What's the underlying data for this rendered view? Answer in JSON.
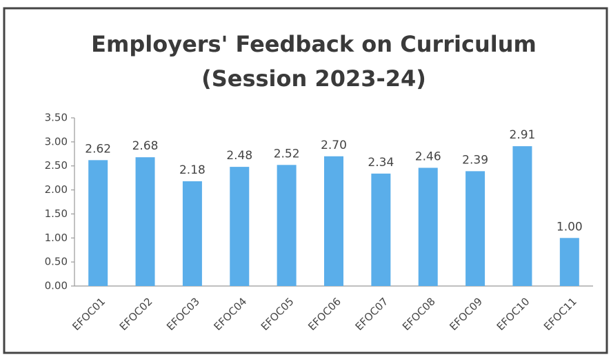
{
  "chart_data": {
    "type": "bar",
    "title": "Employers' Feedback on Curriculum",
    "subtitle": "(Session 2023-24)",
    "categories": [
      "EFOC01",
      "EFOC02",
      "EFOC03",
      "EFOC04",
      "EFOC05",
      "EFOC06",
      "EFOC07",
      "EFOC08",
      "EFOC09",
      "EFOC10",
      "EFOC11"
    ],
    "values": [
      2.62,
      2.68,
      2.18,
      2.48,
      2.52,
      2.7,
      2.34,
      2.46,
      2.39,
      2.91,
      1.0
    ],
    "value_labels": [
      "2.62",
      "2.68",
      "2.18",
      "2.48",
      "2.52",
      "2.70",
      "2.34",
      "2.46",
      "2.39",
      "2.91",
      "1.00"
    ],
    "color": "#5aaeea",
    "ylim": [
      0,
      3.5
    ],
    "yticks": [
      {
        "value": 0,
        "label": "0.00"
      },
      {
        "value": 0.5,
        "label": "0.50"
      },
      {
        "value": 1,
        "label": "1.00"
      },
      {
        "value": 1.5,
        "label": "1.50"
      },
      {
        "value": 2,
        "label": "2.00"
      },
      {
        "value": 2.5,
        "label": "2.50"
      },
      {
        "value": 3,
        "label": "3.00"
      },
      {
        "value": 3.5,
        "label": "3.50"
      }
    ],
    "grid": false
  }
}
